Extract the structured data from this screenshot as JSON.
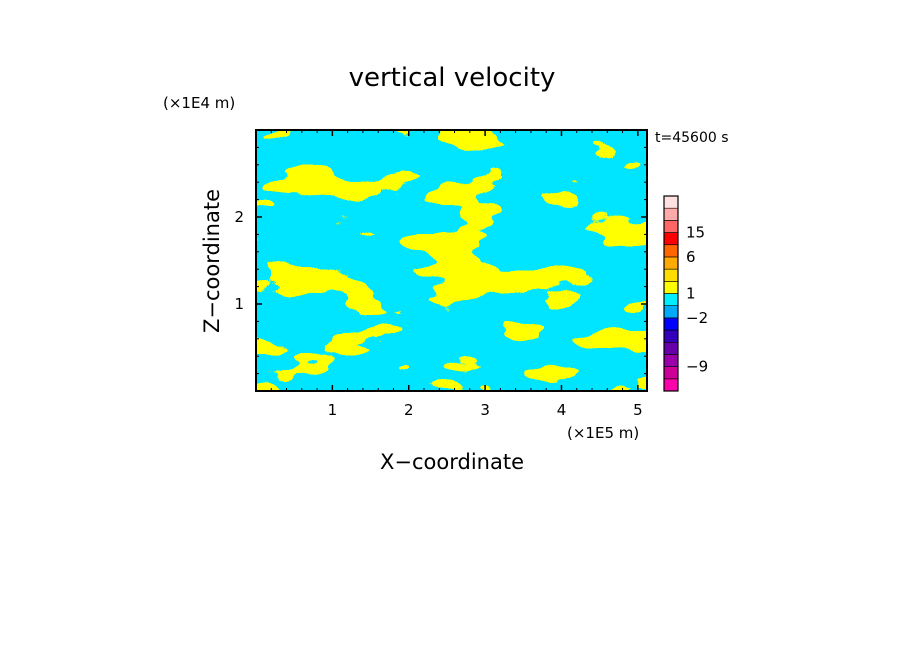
{
  "chart_data": {
    "type": "heatmap",
    "title": "vertical velocity",
    "xlabel": "X−coordinate",
    "ylabel": "Z−coordinate",
    "x_unit": "(×1E5 m)",
    "y_unit": "(×1E4 m)",
    "time_label": "t=45600 s",
    "xlim": [
      0,
      5.12
    ],
    "ylim": [
      0,
      3.0
    ],
    "x_ticks": [
      "1",
      "2",
      "3",
      "4",
      "5"
    ],
    "x_tick_values": [
      1,
      2,
      3,
      4,
      5
    ],
    "y_ticks": [
      "1",
      "2"
    ],
    "y_tick_values": [
      1,
      2
    ],
    "field_colors": {
      "positive": "#ffff00",
      "negative": "#00e5ff"
    },
    "colorbar": {
      "segments_bottom_to_top": [
        "#ff00aa",
        "#cc0099",
        "#9900aa",
        "#6600aa",
        "#3300bb",
        "#0000ff",
        "#00aaff",
        "#00eeff",
        "#ffff00",
        "#ffdd00",
        "#ffaa00",
        "#ff6600",
        "#ff0000",
        "#ff6666",
        "#ffaaaa",
        "#ffe0e0"
      ],
      "labels": [
        {
          "text": "15",
          "value": 15
        },
        {
          "text": "6",
          "value": 6
        },
        {
          "text": "1",
          "value": 1
        },
        {
          "text": "−2",
          "value": -2
        },
        {
          "text": "−9",
          "value": -9
        }
      ],
      "label_segment_index": [
        13,
        11,
        8,
        6,
        2
      ]
    }
  }
}
